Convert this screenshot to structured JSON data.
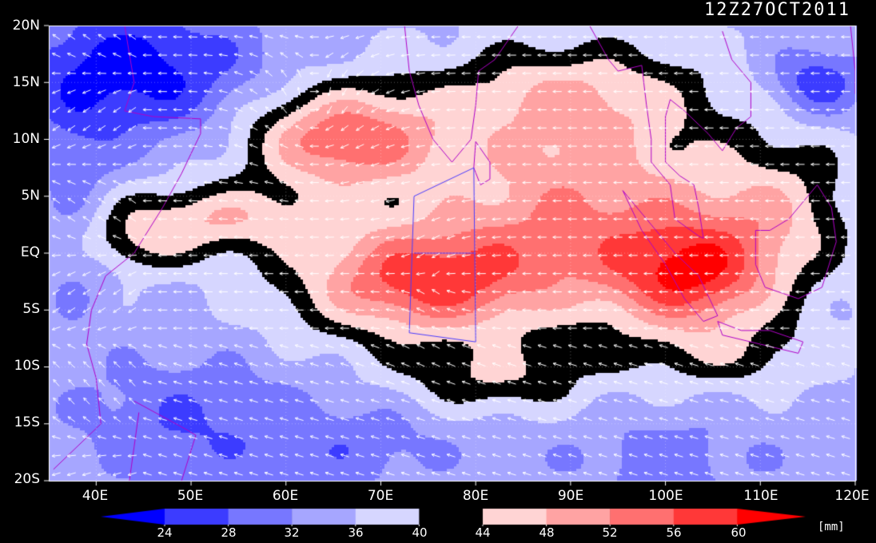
{
  "timestamp": "12Z27OCT2011",
  "unit_label": "[mm]",
  "map": {
    "lon_range": [
      35,
      120
    ],
    "lat_range": [
      -20,
      20
    ],
    "lat_ticks": [
      "20N",
      "15N",
      "10N",
      "5N",
      "EQ",
      "5S",
      "10S",
      "15S",
      "20S"
    ],
    "lat_values": [
      20,
      15,
      10,
      5,
      0,
      -5,
      -10,
      -15,
      -20
    ],
    "lon_ticks": [
      "40E",
      "50E",
      "60E",
      "70E",
      "80E",
      "90E",
      "100E",
      "110E",
      "120E"
    ],
    "lon_values": [
      40,
      50,
      60,
      70,
      80,
      90,
      100,
      110,
      120
    ],
    "field": "precipitable water",
    "vectors": "wind arrows"
  },
  "colorbar": {
    "levels": [
      "24",
      "28",
      "32",
      "36",
      "40",
      "44",
      "48",
      "52",
      "56",
      "60"
    ],
    "colors": [
      "#0000ff",
      "#3c3cff",
      "#7777ff",
      "#a6a6ff",
      "#d6d6ff",
      "#000000",
      "#ffd4d4",
      "#ffa3a3",
      "#ff7070",
      "#ff3838",
      "#ff0000"
    ]
  }
}
